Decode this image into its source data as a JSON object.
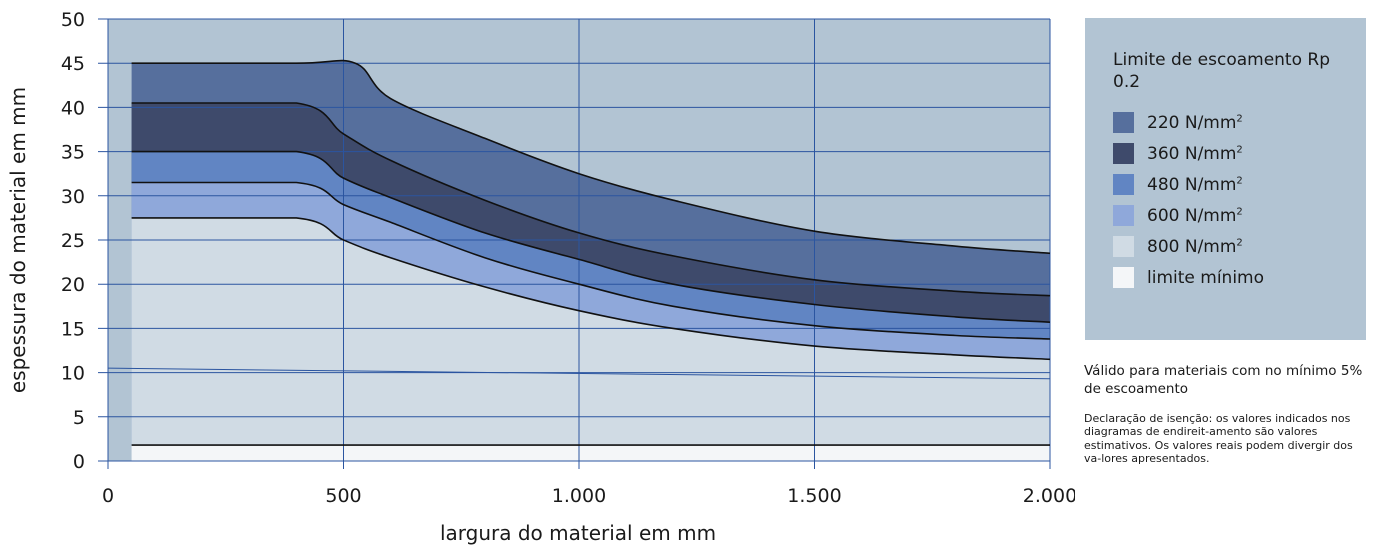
{
  "chart_data": {
    "type": "area",
    "xlabel": "largura do material em mm",
    "ylabel": "espessura do material em mm",
    "xlim": [
      0,
      2000
    ],
    "ylim": [
      0,
      50
    ],
    "x_ticks": [
      "0",
      "500",
      "1.000",
      "1.500",
      "2.000"
    ],
    "y_ticks": [
      "0",
      "5",
      "10",
      "15",
      "20",
      "25",
      "30",
      "35",
      "40",
      "45",
      "50"
    ],
    "grid": true,
    "legend_placement": "right",
    "legend_title": "Limite de escoamento Rp 0.2",
    "series": [
      {
        "name": "220 N/mm²",
        "color": "#566f9d",
        "x": [
          50,
          400,
          525,
          600,
          800,
          1000,
          1200,
          1500,
          1800,
          2000
        ],
        "y": [
          45,
          45,
          45,
          41.0,
          36.5,
          32.5,
          29.5,
          26.0,
          24.3,
          23.5
        ]
      },
      {
        "name": "360 N/mm²",
        "color": "#3e4a6b",
        "x": [
          50,
          400,
          500,
          600,
          800,
          1000,
          1200,
          1500,
          1800,
          2000
        ],
        "y": [
          40.5,
          40.5,
          37.0,
          34.0,
          29.5,
          25.8,
          23.2,
          20.5,
          19.2,
          18.7
        ]
      },
      {
        "name": "480 N/mm²",
        "color": "#6185c3",
        "x": [
          50,
          400,
          500,
          600,
          800,
          1000,
          1200,
          1500,
          1800,
          2000
        ],
        "y": [
          35,
          35,
          32.0,
          29.8,
          25.8,
          22.8,
          20.0,
          17.7,
          16.3,
          15.7
        ]
      },
      {
        "name": "600 N/mm²",
        "color": "#8fa8da",
        "x": [
          50,
          400,
          500,
          600,
          800,
          1000,
          1200,
          1500,
          1800,
          2000
        ],
        "y": [
          31.5,
          31.5,
          29.0,
          27.0,
          23.0,
          20.0,
          17.5,
          15.3,
          14.2,
          13.8
        ]
      },
      {
        "name": "800 N/mm²",
        "color": "#d0dbe4",
        "x": [
          50,
          400,
          500,
          600,
          800,
          1000,
          1200,
          1500,
          1800,
          2000
        ],
        "y": [
          27.5,
          27.5,
          25.0,
          23.0,
          19.7,
          17.0,
          15.0,
          13.0,
          12.0,
          11.5
        ]
      },
      {
        "name": "limite mínimo",
        "color": "#f4f6f8",
        "x": [
          50,
          2000
        ],
        "y": [
          1.8,
          1.8
        ]
      }
    ],
    "reference_line": {
      "x": [
        0,
        2000
      ],
      "y": [
        10.5,
        9.3
      ]
    }
  },
  "legend": {
    "title": "Limite de escoamento Rp 0.2",
    "unit_base": "N/mm",
    "unit_exp": "2",
    "items": [
      {
        "value": "220",
        "color": "#566f9d",
        "has_unit": true
      },
      {
        "value": "360",
        "color": "#3e4a6b",
        "has_unit": true
      },
      {
        "value": "480",
        "color": "#6185c3",
        "has_unit": true
      },
      {
        "value": "600",
        "color": "#8fa8da",
        "has_unit": true
      },
      {
        "value": "800",
        "color": "#d0dbe4",
        "has_unit": true
      },
      {
        "value": "limite mínimo",
        "color": "#f4f6f8",
        "has_unit": false
      }
    ],
    "background": "#b2c4d3"
  },
  "notes": {
    "valid": "Válido para materiais com no mínimo 5% de escoamento",
    "disclaimer": "Declaração de isenção: os valores indicados nos diagramas de endireit-amento são valores estimativos. Os valores reais podem divergir dos va-lores apresentados."
  },
  "colors": {
    "plot_background": "#b2c4d3",
    "grid": "#2b55a0",
    "boundary": "#111111"
  }
}
